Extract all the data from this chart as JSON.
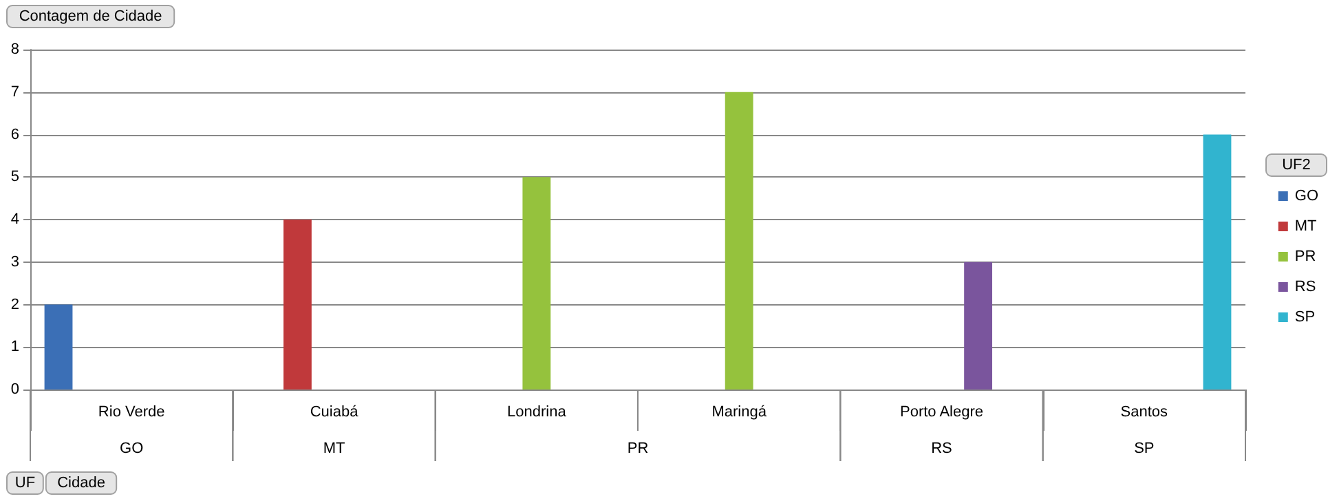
{
  "chart_data": {
    "type": "bar",
    "title": "Contagem de Cidade",
    "legend_title": "UF2",
    "categories": [
      "Rio Verde",
      "Cuiabá",
      "Londrina",
      "Maringá",
      "Porto Alegre",
      "Santos"
    ],
    "series": [
      {
        "name": "GO",
        "color": "#3b6fb6",
        "values": [
          2,
          null,
          null,
          null,
          null,
          null
        ]
      },
      {
        "name": "MT",
        "color": "#c0393b",
        "values": [
          null,
          4,
          null,
          null,
          null,
          null
        ]
      },
      {
        "name": "PR",
        "color": "#95c23d",
        "values": [
          null,
          null,
          5,
          7,
          null,
          null
        ]
      },
      {
        "name": "RS",
        "color": "#7a559d",
        "values": [
          null,
          null,
          null,
          null,
          3,
          null
        ]
      },
      {
        "name": "SP",
        "color": "#31b4cf",
        "values": [
          null,
          null,
          null,
          null,
          null,
          6
        ]
      }
    ],
    "annotations": [
      "UF",
      "Cidade"
    ],
    "ylim": [
      0,
      8
    ],
    "yticks": [
      0,
      1,
      2,
      3,
      4,
      5,
      6,
      7,
      8
    ],
    "grid": "y",
    "legend": "right"
  }
}
